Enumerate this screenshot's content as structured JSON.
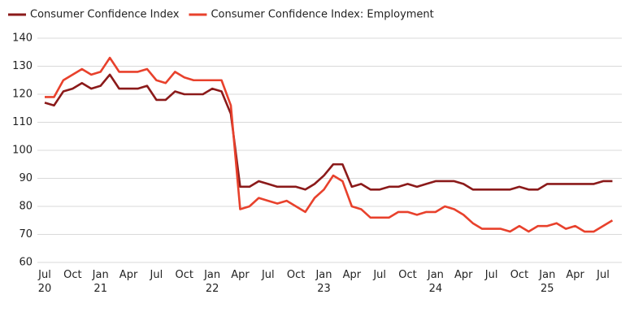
{
  "chart_data": {
    "type": "line",
    "categories": [
      "Jul 20",
      null,
      null,
      "Oct",
      null,
      null,
      "Jan 21",
      null,
      null,
      "Apr",
      null,
      null,
      "Jul",
      null,
      null,
      "Oct",
      null,
      null,
      "Jan 22",
      null,
      null,
      "Apr",
      null,
      null,
      "Jul",
      null,
      null,
      "Oct",
      null,
      null,
      "Jan 23",
      null,
      null,
      "Apr",
      null,
      null,
      "Jul",
      null,
      null,
      "Oct",
      null,
      null,
      "Jan 24",
      null,
      null,
      "Apr",
      null,
      null,
      "Jul",
      null,
      null,
      "Oct",
      null,
      null,
      "Jan 25",
      null,
      null,
      "Apr",
      null,
      null,
      "Jul",
      null
    ],
    "series": [
      {
        "name": "Consumer Confidence Index",
        "color": "#8b1a1a",
        "values": [
          117,
          116,
          121,
          122,
          124,
          122,
          123,
          127,
          122,
          122,
          122,
          123,
          118,
          118,
          121,
          120,
          120,
          120,
          122,
          121,
          113,
          87,
          87,
          89,
          88,
          87,
          87,
          87,
          86,
          88,
          91,
          95,
          95,
          87,
          88,
          86,
          86,
          87,
          87,
          88,
          87,
          88,
          89,
          89,
          89,
          88,
          86,
          86,
          86,
          86,
          86,
          87,
          86,
          86,
          88,
          88,
          88,
          88,
          88,
          88,
          89,
          89
        ]
      },
      {
        "name": "Consumer Confidence Index: Employment",
        "color": "#e8412c",
        "values": [
          119,
          119,
          125,
          127,
          129,
          127,
          128,
          133,
          128,
          128,
          128,
          129,
          125,
          124,
          128,
          126,
          125,
          125,
          125,
          125,
          116,
          79,
          80,
          83,
          82,
          81,
          82,
          80,
          78,
          83,
          86,
          91,
          89,
          80,
          79,
          76,
          76,
          76,
          78,
          78,
          77,
          78,
          78,
          80,
          79,
          77,
          74,
          72,
          72,
          72,
          71,
          73,
          71,
          73,
          73,
          74,
          72,
          73,
          71,
          71,
          73,
          75
        ]
      }
    ],
    "ylim": [
      60,
      140
    ],
    "yticks": [
      60,
      70,
      80,
      90,
      100,
      110,
      120,
      130,
      140
    ],
    "grid": true
  }
}
